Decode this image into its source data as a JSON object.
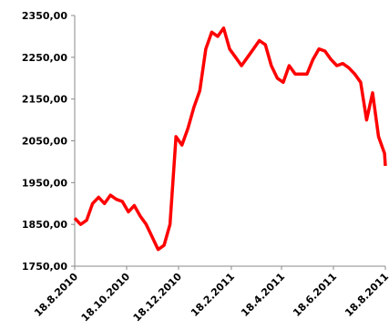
{
  "chart_data": {
    "type": "line",
    "x": [
      "2010-08-18",
      "2010-08-25",
      "2010-09-01",
      "2010-09-08",
      "2010-09-15",
      "2010-09-22",
      "2010-09-29",
      "2010-10-06",
      "2010-10-13",
      "2010-10-20",
      "2010-10-27",
      "2010-11-03",
      "2010-11-10",
      "2010-11-17",
      "2010-11-24",
      "2010-12-01",
      "2010-12-08",
      "2010-12-15",
      "2010-12-22",
      "2010-12-29",
      "2011-01-05",
      "2011-01-12",
      "2011-01-19",
      "2011-01-26",
      "2011-02-02",
      "2011-02-09",
      "2011-02-16",
      "2011-02-23",
      "2011-03-02",
      "2011-03-09",
      "2011-03-16",
      "2011-03-23",
      "2011-03-30",
      "2011-04-06",
      "2011-04-13",
      "2011-04-20",
      "2011-04-27",
      "2011-05-04",
      "2011-05-11",
      "2011-05-18",
      "2011-05-25",
      "2011-06-01",
      "2011-06-08",
      "2011-06-15",
      "2011-06-22",
      "2011-06-29",
      "2011-07-06",
      "2011-07-13",
      "2011-07-20",
      "2011-07-27",
      "2011-08-03",
      "2011-08-10",
      "2011-08-17",
      "2011-08-18"
    ],
    "series": [
      {
        "color": "#ff0000",
        "values": [
          1865,
          1850,
          1860,
          1900,
          1915,
          1900,
          1920,
          1910,
          1905,
          1880,
          1895,
          1870,
          1850,
          1820,
          1790,
          1800,
          1850,
          2060,
          2040,
          2080,
          2130,
          2170,
          2270,
          2310,
          2300,
          2320,
          2270,
          2250,
          2230,
          2250,
          2270,
          2290,
          2280,
          2230,
          2200,
          2190,
          2230,
          2210,
          2210,
          2210,
          2245,
          2270,
          2265,
          2245,
          2230,
          2235,
          2225,
          2210,
          2190,
          2100,
          2165,
          2060,
          2020,
          1990
        ]
      }
    ],
    "xlim": [
      "2010-08-18",
      "2011-08-18"
    ],
    "xticks": [
      {
        "value": "2010-08-18",
        "label": "18.8.2010"
      },
      {
        "value": "2010-10-18",
        "label": "18.10.2010"
      },
      {
        "value": "2010-12-18",
        "label": "18.12.2010"
      },
      {
        "value": "2011-02-18",
        "label": "18.2.2011"
      },
      {
        "value": "2011-04-18",
        "label": "18.4.2011"
      },
      {
        "value": "2011-06-18",
        "label": "18.6.2011"
      },
      {
        "value": "2011-08-18",
        "label": "18.8.2011"
      }
    ],
    "ylim": [
      1750,
      2350
    ],
    "yticks": [
      {
        "value": 1750,
        "label": "1750,00"
      },
      {
        "value": 1850,
        "label": "1850,00"
      },
      {
        "value": 1950,
        "label": "1950,00"
      },
      {
        "value": 2050,
        "label": "2050,00"
      },
      {
        "value": 2150,
        "label": "2150,00"
      },
      {
        "value": 2250,
        "label": "2250,00"
      },
      {
        "value": 2350,
        "label": "2350,00"
      }
    ]
  }
}
